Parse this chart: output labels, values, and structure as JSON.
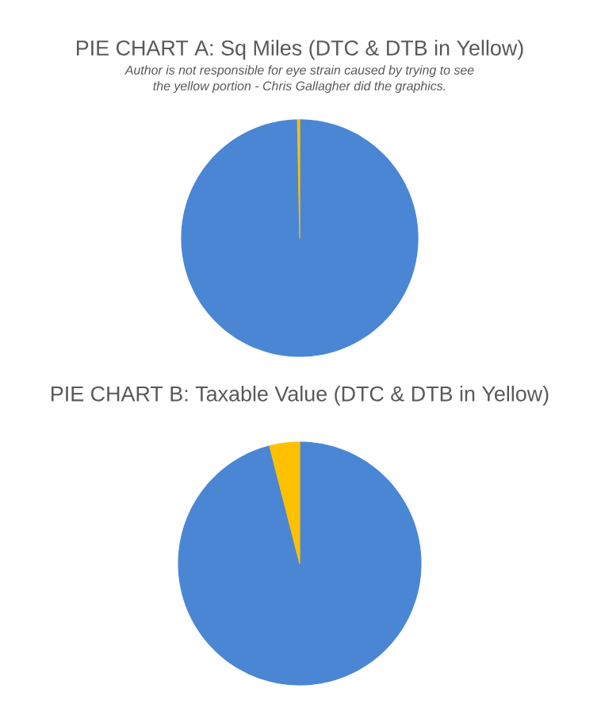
{
  "chart_data": [
    {
      "type": "pie",
      "title": "PIE CHART A: Sq Miles (DTC & DTB in Yellow)",
      "subtitle": "Author is not responsible for eye strain caused by trying to see the yellow portion - Chris Gallagher did the graphics.",
      "categories": [
        null,
        null
      ],
      "values": [
        99.7,
        0.3
      ],
      "colors": [
        "#4a86d4",
        "#ffc000"
      ]
    },
    {
      "type": "pie",
      "title": "PIE CHART B: Taxable Value (DTC & DTB in Yellow)",
      "categories": [
        null,
        null
      ],
      "values": [
        96,
        4
      ],
      "colors": [
        "#4a86d4",
        "#ffc000"
      ]
    }
  ]
}
